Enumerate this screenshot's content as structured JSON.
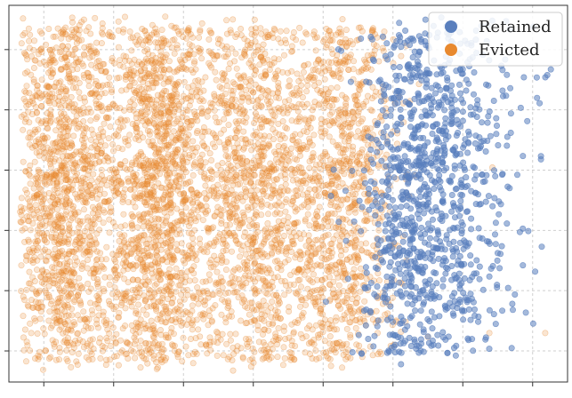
{
  "chart_data": {
    "type": "scatter",
    "title": "",
    "xlabel": "",
    "ylabel": "",
    "xlim": [
      0,
      1
    ],
    "ylim": [
      0,
      1
    ],
    "grid": true,
    "tick_labels_visible": false,
    "legend_placement": "top-right",
    "series": [
      {
        "name": "Evicted",
        "color": "#e8892f",
        "opacity": 0.22,
        "description_count": 9000,
        "clusters": [
          {
            "cx": 0.1,
            "cy": 0.5,
            "sx": 0.045,
            "sy": 0.26,
            "w": 0.19
          },
          {
            "cx": 0.27,
            "cy": 0.5,
            "sx": 0.045,
            "sy": 0.26,
            "w": 0.22
          },
          {
            "cx": 0.45,
            "cy": 0.5,
            "sx": 0.055,
            "sy": 0.26,
            "w": 0.21
          },
          {
            "cx": 0.6,
            "cy": 0.5,
            "sx": 0.045,
            "sy": 0.26,
            "w": 0.18
          },
          {
            "cx": 0.18,
            "cy": 0.5,
            "sx": 0.16,
            "sy": 0.3,
            "w": 0.2
          }
        ],
        "notable_points": [
          [
            0.28,
            0.97
          ],
          [
            0.46,
            0.93
          ],
          [
            0.52,
            0.94
          ],
          [
            0.03,
            0.56
          ],
          [
            0.04,
            0.13
          ],
          [
            0.06,
            0.2
          ],
          [
            0.09,
            0.06
          ],
          [
            0.33,
            0.05
          ],
          [
            0.48,
            0.1
          ],
          [
            0.71,
            0.16
          ],
          [
            0.75,
            0.12
          ],
          [
            0.96,
            0.13
          ],
          [
            0.86,
            0.13
          ],
          [
            0.66,
            0.13
          ]
        ]
      },
      {
        "name": "Retained",
        "color": "#5a7fbd",
        "opacity": 0.55,
        "description_count": 1500,
        "clusters": [
          {
            "cx": 0.73,
            "cy": 0.5,
            "sx": 0.05,
            "sy": 0.25,
            "w": 0.55
          },
          {
            "cx": 0.78,
            "cy": 0.55,
            "sx": 0.07,
            "sy": 0.28,
            "w": 0.45
          }
        ],
        "notable_points": [
          [
            0.97,
            0.83
          ],
          [
            0.95,
            0.74
          ],
          [
            0.92,
            0.6
          ],
          [
            0.91,
            0.55
          ],
          [
            0.89,
            0.76
          ],
          [
            0.85,
            0.64
          ],
          [
            0.86,
            0.28
          ],
          [
            0.88,
            0.34
          ],
          [
            0.92,
            0.31
          ],
          [
            0.84,
            0.16
          ],
          [
            0.8,
            0.07
          ],
          [
            0.9,
            0.09
          ],
          [
            0.81,
            0.75
          ],
          [
            0.84,
            0.62
          ]
        ]
      }
    ]
  },
  "legend": {
    "items": [
      {
        "label": "Retained",
        "color": "#5a7fbd"
      },
      {
        "label": "Evicted",
        "color": "#e8892f"
      }
    ]
  }
}
